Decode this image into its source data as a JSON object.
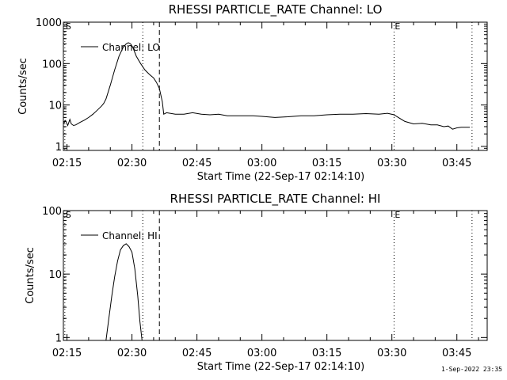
{
  "footer": {
    "timestamp": "1-Sep-2022 23:35"
  },
  "chart_data": [
    {
      "type": "line",
      "title": "RHESSI PARTICLE_RATE Channel: LO",
      "xlabel": "Start Time (22-Sep-17 02:14:10)",
      "ylabel": "Counts/sec",
      "yscale": "log",
      "ylim": [
        0.8,
        1000
      ],
      "xlim": [
        "02:14:10",
        "03:52:00"
      ],
      "xticks": [
        "02:15",
        "02:30",
        "02:45",
        "03:00",
        "03:15",
        "03:30",
        "03:45"
      ],
      "yticks": [
        "1",
        "10",
        "100",
        "1000"
      ],
      "markers": [
        {
          "label": "S",
          "time": "02:14:30",
          "style": "dotted"
        },
        {
          "label": "",
          "time": "02:32:30",
          "style": "dotted"
        },
        {
          "label": "",
          "time": "02:36:20",
          "style": "dashed"
        },
        {
          "label": "E",
          "time": "03:30:30",
          "style": "dotted"
        },
        {
          "label": "",
          "time": "03:48:30",
          "style": "dotted"
        }
      ],
      "legend": {
        "position": "top-left",
        "entries": [
          "Channel: LO"
        ]
      },
      "series": [
        {
          "name": "Channel: LO",
          "x": [
            "02:14:10",
            "02:14:40",
            "02:15:10",
            "02:15:40",
            "02:16:00",
            "02:16:30",
            "02:17:00",
            "02:18:00",
            "02:19:00",
            "02:20:00",
            "02:21:00",
            "02:22:00",
            "02:23:00",
            "02:23:30",
            "02:24:00",
            "02:25:00",
            "02:26:00",
            "02:27:00",
            "02:28:00",
            "02:28:40",
            "02:29:10",
            "02:29:40",
            "02:30:10",
            "02:31:00",
            "02:32:00",
            "02:33:00",
            "02:34:00",
            "02:35:00",
            "02:35:40",
            "02:36:20",
            "02:37:00",
            "02:37:20",
            "02:38:00",
            "02:40:00",
            "02:42:00",
            "02:44:00",
            "02:46:00",
            "02:48:00",
            "02:50:00",
            "02:52:00",
            "02:54:00",
            "02:56:00",
            "02:58:00",
            "03:00:00",
            "03:03:00",
            "03:06:00",
            "03:09:00",
            "03:12:00",
            "03:15:00",
            "03:18:00",
            "03:21:00",
            "03:24:00",
            "03:27:00",
            "03:29:00",
            "03:30:30",
            "03:31:30",
            "03:33:00",
            "03:35:00",
            "03:37:00",
            "03:39:00",
            "03:40:30",
            "03:42:00",
            "03:43:00",
            "03:44:00",
            "03:45:00",
            "03:46:00",
            "03:48:00"
          ],
          "values": [
            3.5,
            4.2,
            3.2,
            4.5,
            3.5,
            3.2,
            3.3,
            3.8,
            4.3,
            5.0,
            6.0,
            7.5,
            9.5,
            11,
            14,
            30,
            70,
            150,
            250,
            300,
            320,
            300,
            250,
            150,
            100,
            70,
            55,
            45,
            35,
            25,
            12,
            6,
            6.5,
            6,
            6,
            6.5,
            6,
            5.8,
            6,
            5.5,
            5.5,
            5.5,
            5.5,
            5.3,
            5,
            5.2,
            5.5,
            5.5,
            5.8,
            6,
            6,
            6.2,
            6,
            6.3,
            5.8,
            5,
            4,
            3.5,
            3.6,
            3.3,
            3.3,
            3,
            3.1,
            2.6,
            2.8,
            2.9,
            2.9
          ]
        }
      ]
    },
    {
      "type": "line",
      "title": "RHESSI PARTICLE_RATE Channel: HI",
      "xlabel": "Start Time (22-Sep-17 02:14:10)",
      "ylabel": "Counts/sec",
      "yscale": "log",
      "ylim": [
        0.9,
        100
      ],
      "xlim": [
        "02:14:10",
        "03:52:00"
      ],
      "xticks": [
        "02:15",
        "02:30",
        "02:45",
        "03:00",
        "03:15",
        "03:30",
        "03:45"
      ],
      "yticks": [
        "1",
        "10",
        "100"
      ],
      "markers": [
        {
          "label": "S",
          "time": "02:14:30",
          "style": "dotted"
        },
        {
          "label": "",
          "time": "02:32:30",
          "style": "dotted"
        },
        {
          "label": "",
          "time": "02:36:20",
          "style": "dashed"
        },
        {
          "label": "E",
          "time": "03:30:30",
          "style": "dotted"
        },
        {
          "label": "",
          "time": "03:48:30",
          "style": "dotted"
        }
      ],
      "legend": {
        "position": "top-left",
        "entries": [
          "Channel: HI"
        ]
      },
      "series": [
        {
          "name": "Channel: HI",
          "x": [
            "02:24:00",
            "02:24:40",
            "02:25:20",
            "02:26:00",
            "02:26:40",
            "02:27:20",
            "02:28:00",
            "02:28:40",
            "02:29:20",
            "02:30:00",
            "02:30:40",
            "02:31:20",
            "02:31:50",
            "02:32:20"
          ],
          "values": [
            0.9,
            2.0,
            4.5,
            9,
            16,
            24,
            28,
            30,
            27,
            22,
            12,
            4.5,
            1.8,
            0.9
          ]
        }
      ]
    }
  ]
}
